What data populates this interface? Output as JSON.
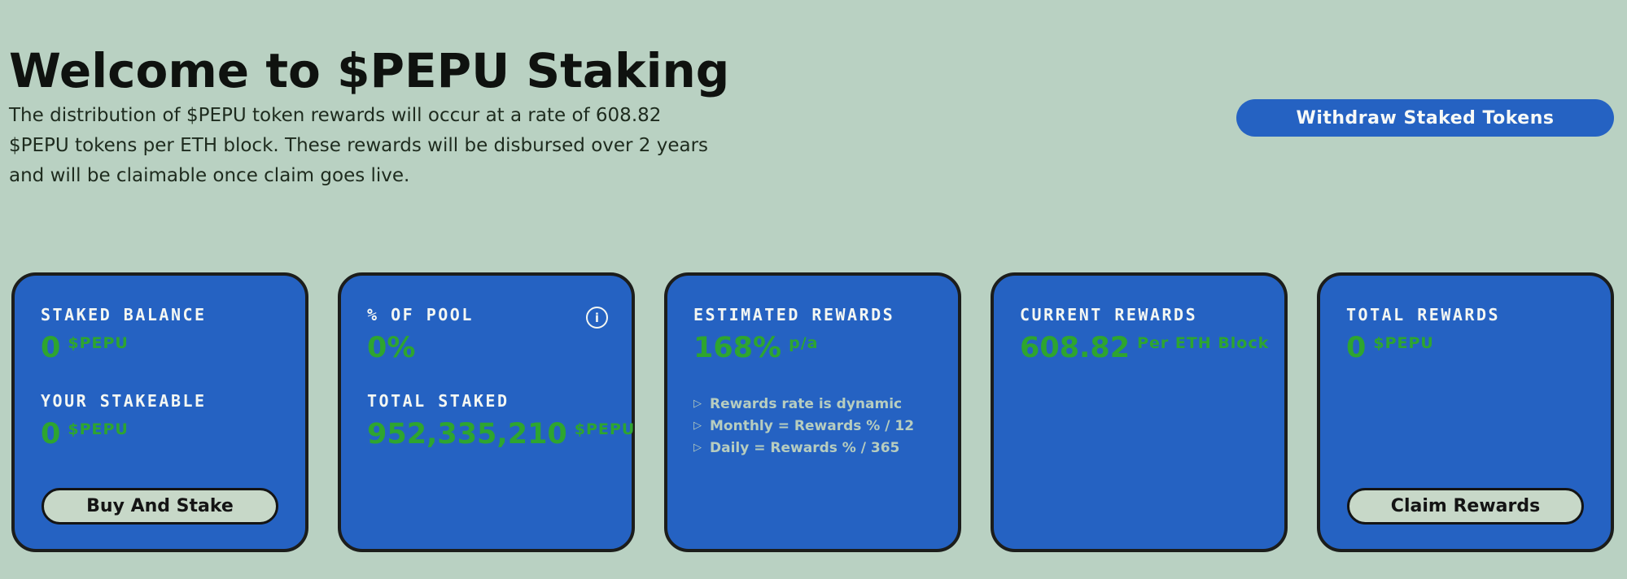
{
  "header": {
    "title": "Welcome to $PEPU Staking",
    "description_lines": [
      "The distribution of $PEPU token rewards will occur at a rate of 608.82",
      "$PEPU tokens per ETH block. These rewards will be disbursed over 2 years",
      "and will be claimable once claim goes live."
    ],
    "withdraw_button_label": "Withdraw Staked Tokens"
  },
  "icons": {
    "info_glyph": "i",
    "note_bullet_glyph": "▷"
  },
  "colors": {
    "background": "#b9d1c2",
    "card_blue": "#2562c2",
    "card_border": "#1c1d1b",
    "accent_green": "#2ea52f",
    "pill_sage": "#c7d8c8",
    "note_text": "#b7cdbf"
  },
  "cards": [
    {
      "sections": [
        {
          "label": "STAKED BALANCE",
          "value": "0",
          "unit": "$PEPU"
        },
        {
          "label": "YOUR STAKEABLE",
          "value": "0",
          "unit": "$PEPU"
        }
      ],
      "button_label": "Buy And Stake"
    },
    {
      "sections": [
        {
          "label": "% OF POOL",
          "value": "0%",
          "unit": ""
        },
        {
          "label": "TOTAL STAKED",
          "value": "952,335,210",
          "unit": "$PEPU"
        }
      ]
    },
    {
      "sections": [
        {
          "label": "ESTIMATED REWARDS",
          "value": "168%",
          "unit": "p/a"
        }
      ],
      "notes": [
        "Rewards rate is dynamic",
        "Monthly = Rewards % / 12",
        "Daily = Rewards % / 365"
      ]
    },
    {
      "sections": [
        {
          "label": "CURRENT REWARDS",
          "value": "608.82",
          "unit": "Per ETH Block"
        }
      ]
    },
    {
      "sections": [
        {
          "label": "TOTAL REWARDS",
          "value": "0",
          "unit": "$PEPU"
        }
      ],
      "button_label": "Claim Rewards"
    }
  ]
}
